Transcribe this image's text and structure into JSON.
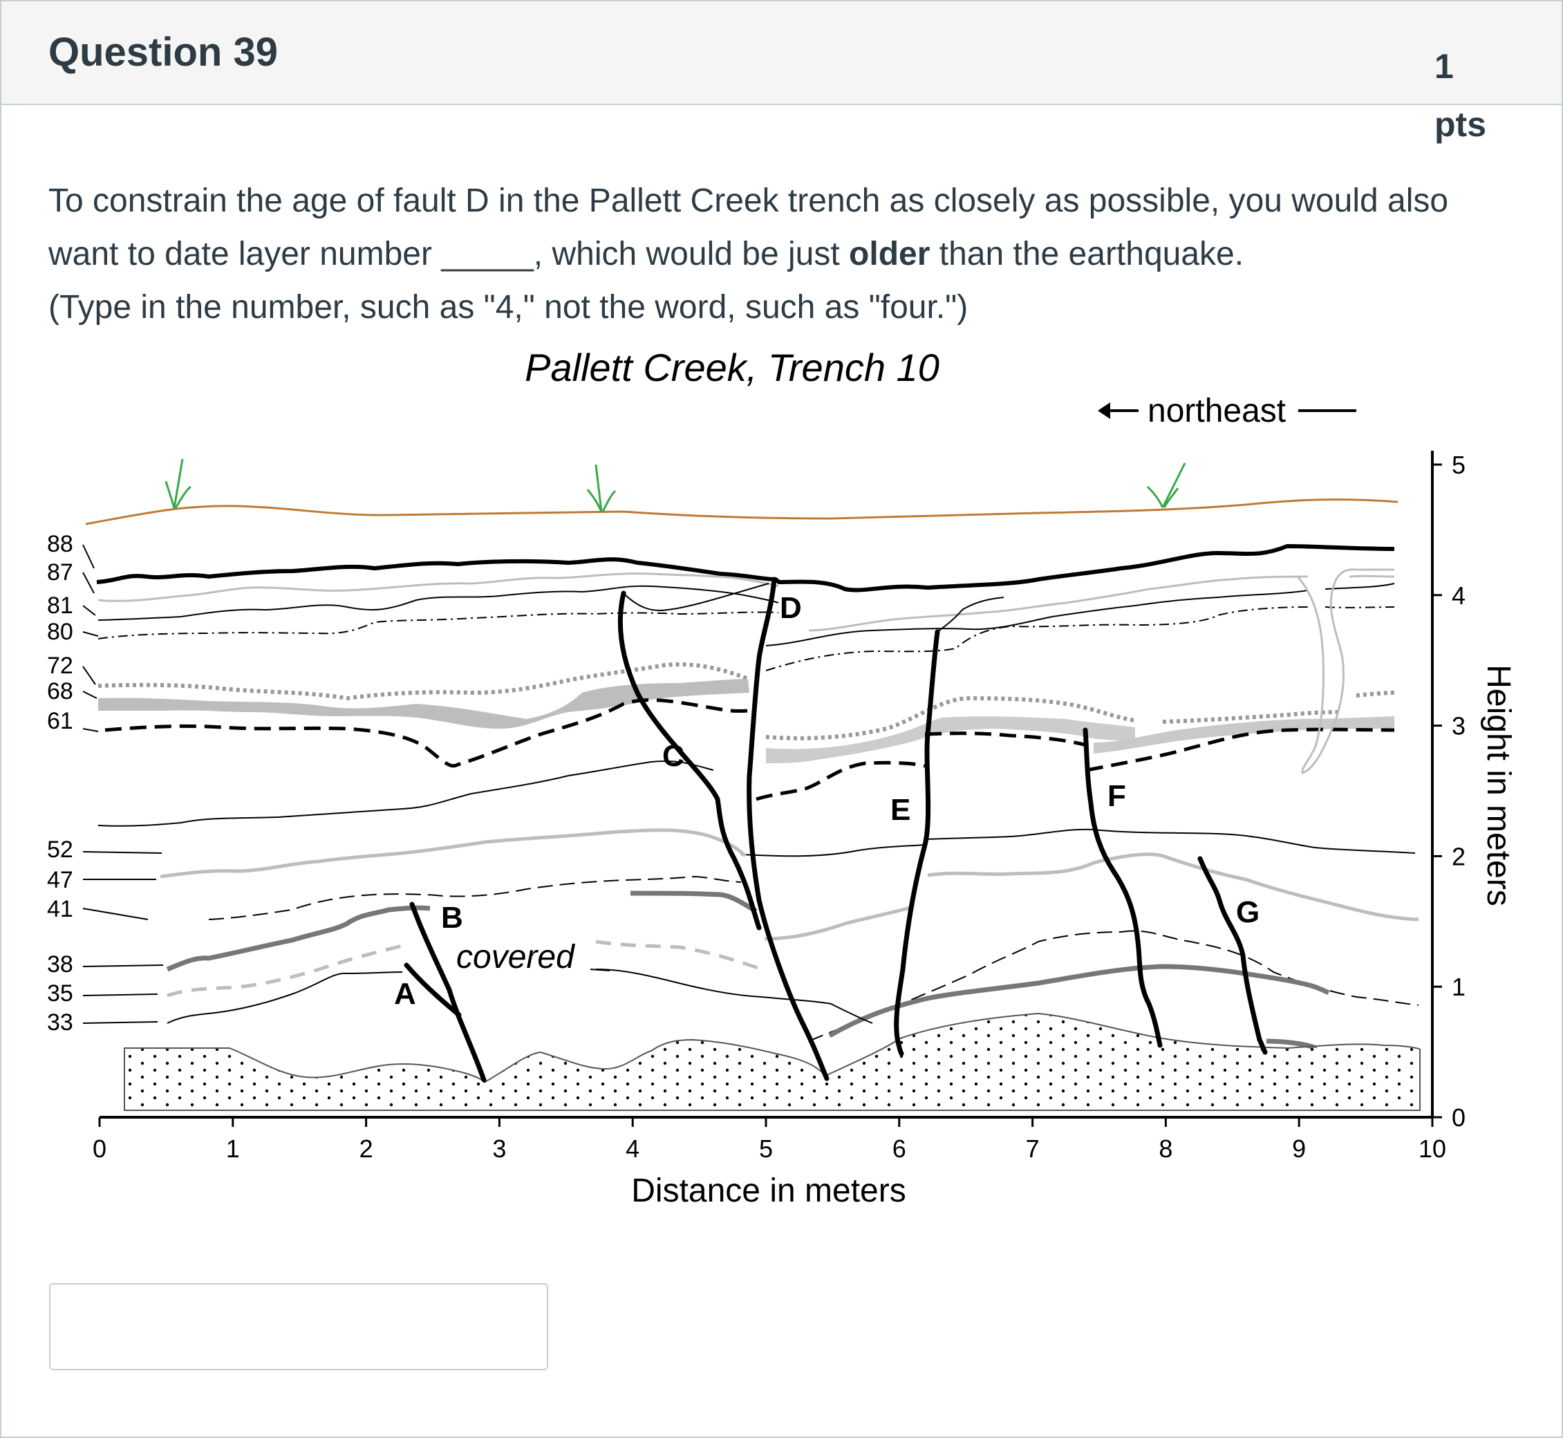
{
  "question": {
    "title": "Question 39",
    "points": "1 pts",
    "text_part1": "To constrain the age of fault D in the Pallett Creek trench as closely as possible, you would also want to date layer number _____, which would be just ",
    "text_bold": "older",
    "text_part2": " than the earthquake.",
    "text_line3": " (Type in the number, such as \"4,\" not the word, such as \"four.\")"
  },
  "figure": {
    "title": "Pallett Creek, Trench 10",
    "direction_label": "northeast",
    "xlabel": "Distance in meters",
    "ylabel": "Height in meters",
    "x_ticks": [
      "0",
      "1",
      "2",
      "3",
      "4",
      "5",
      "6",
      "7",
      "8",
      "9",
      "10"
    ],
    "y_ticks": [
      "0",
      "1",
      "2",
      "3",
      "4",
      "5"
    ],
    "x_range": [
      0,
      10
    ],
    "y_range": [
      0,
      5
    ],
    "layer_labels": [
      "88",
      "87",
      "81",
      "80",
      "72",
      "68",
      "61",
      "52",
      "47",
      "41",
      "38",
      "35",
      "33"
    ],
    "fault_labels": [
      "A",
      "B",
      "C",
      "D",
      "E",
      "F",
      "G"
    ],
    "covered_label": "covered",
    "colors": {
      "surface": "#c07a34",
      "grass": "#3aa64a",
      "ink": "#000000",
      "gray_light": "#bdbdbd",
      "gray_mid": "#777777"
    }
  },
  "answer": {
    "value": ""
  }
}
